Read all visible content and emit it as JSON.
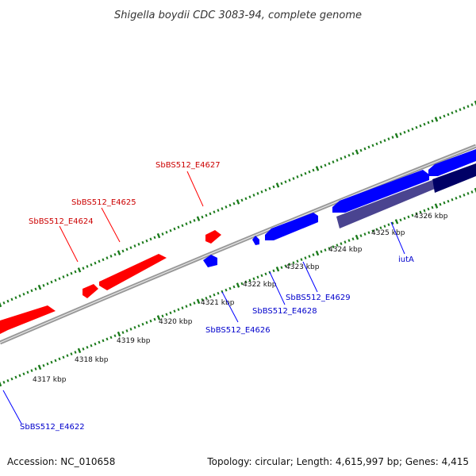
{
  "title": "Shigella boydii CDC 3083-94, complete genome",
  "footer": {
    "accession": "Accession: NC_010658",
    "summary": "Topology: circular; Length: 4,615,997 bp; Genes: 4,415"
  },
  "colors": {
    "forward_gene": "#ff0000",
    "reverse_gene": "#0000ff",
    "backbone": "#888888",
    "tick": "#1a7a1a",
    "dark_track": "#000066",
    "purple_track": "#4a4490"
  },
  "tick_labels": [
    "4317 kbp",
    "4318 kbp",
    "4319 kbp",
    "4320 kbp",
    "4321 kbp",
    "4322 kbp",
    "4323 kbp",
    "4324 kbp",
    "4325 kbp",
    "4326 kbp"
  ],
  "forward_labels": [
    "SbBS512_E4627",
    "SbBS512_E4625",
    "SbBS512_E4624"
  ],
  "reverse_labels": [
    "SbBS512_E4629",
    "SbBS512_E4628",
    "SbBS512_E4626",
    "SbBS512_E4622",
    "iutA"
  ]
}
